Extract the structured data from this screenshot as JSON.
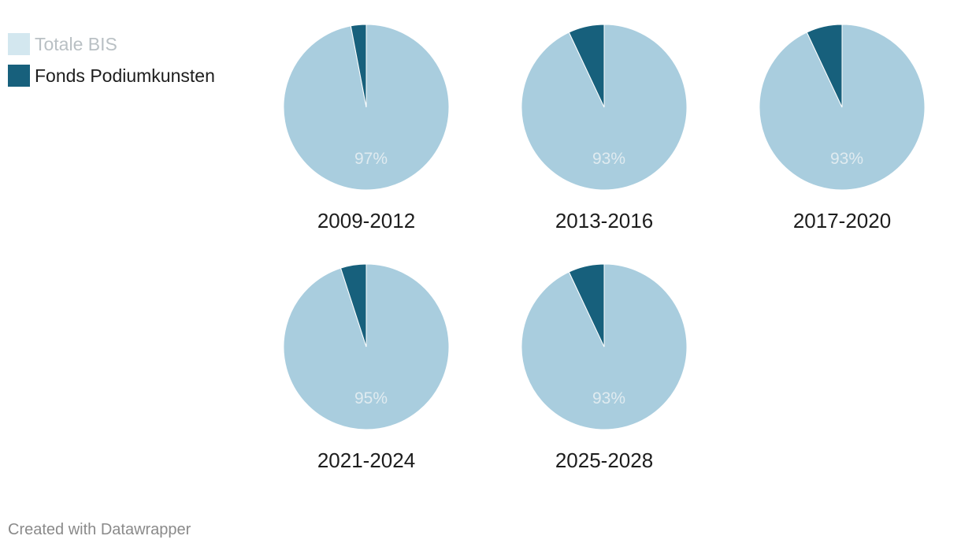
{
  "colors": {
    "totale_bis": "#a9cdde",
    "totale_bis_legend": "#d3e7ef",
    "fonds_podiumkunsten": "#17607c",
    "value_label": "#e0ebf0",
    "period_label": "#1d1d1d"
  },
  "legend": {
    "items": [
      {
        "label": "Totale BIS",
        "color": "#d3e7ef"
      },
      {
        "label": "Fonds Podiumkunsten",
        "color": "#17607c"
      }
    ]
  },
  "chart_data": {
    "type": "pie",
    "series_names": [
      "Totale BIS",
      "Fonds Podiumkunsten"
    ],
    "charts": [
      {
        "period": "2009-2012",
        "values": [
          97,
          3
        ],
        "label": "97%"
      },
      {
        "period": "2013-2016",
        "values": [
          93,
          7
        ],
        "label": "93%"
      },
      {
        "period": "2017-2020",
        "values": [
          93,
          7
        ],
        "label": "93%"
      },
      {
        "period": "2021-2024",
        "values": [
          95,
          5
        ],
        "label": "95%"
      },
      {
        "period": "2025-2028",
        "values": [
          93,
          7
        ],
        "label": "93%"
      }
    ]
  },
  "footer": {
    "credit": "Created with Datawrapper"
  }
}
